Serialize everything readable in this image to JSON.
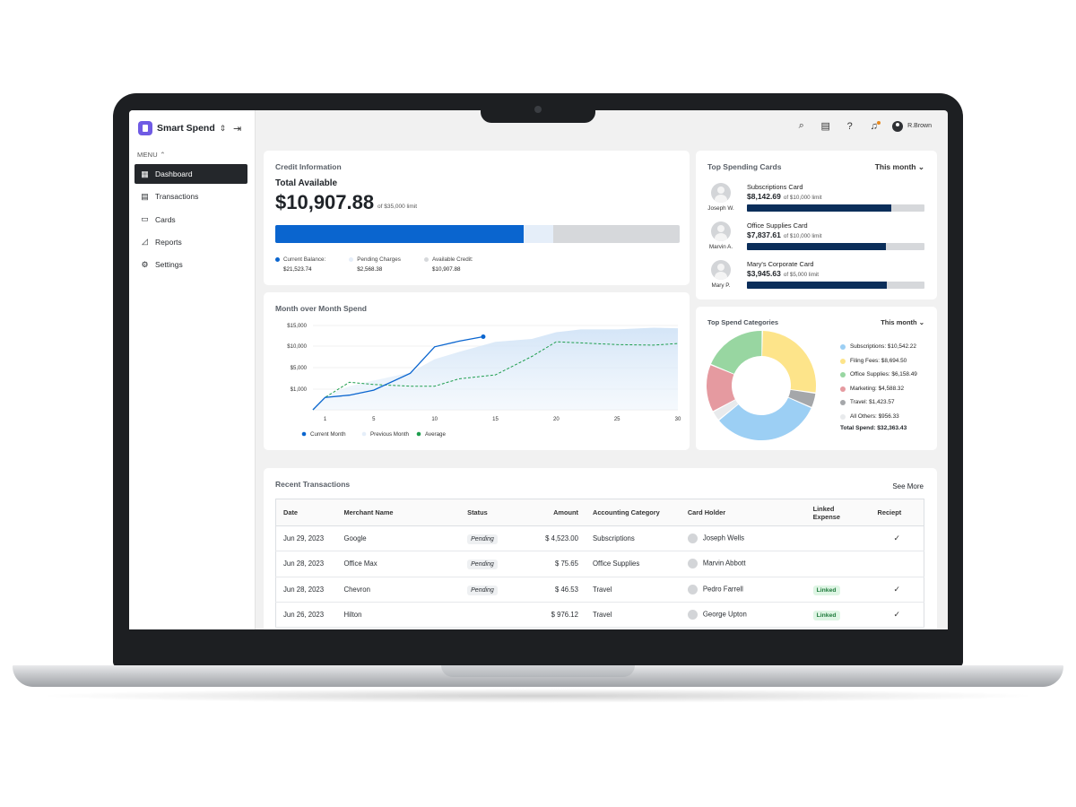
{
  "app": {
    "name": "Smart Spend",
    "menu_label": "MENU",
    "user_name": "R.Brown"
  },
  "sidebar": {
    "items": [
      {
        "label": "Dashboard",
        "icon": "dashboard-icon",
        "active": true
      },
      {
        "label": "Transactions",
        "icon": "document-icon",
        "active": false
      },
      {
        "label": "Cards",
        "icon": "card-icon",
        "active": false
      },
      {
        "label": "Reports",
        "icon": "chart-icon",
        "active": false
      },
      {
        "label": "Settings",
        "icon": "gear-icon",
        "active": false
      }
    ]
  },
  "credit": {
    "title": "Credit Information",
    "total_label": "Total Available",
    "total_amount": "$10,907.88",
    "limit_text": "of $35,000 limit",
    "bar": {
      "balance_fraction": 0.615,
      "pending_fraction": 0.073,
      "available_fraction": 0.312
    },
    "legend": [
      {
        "label": "Current Balance:",
        "value": "$21,523.74",
        "color": "#0a65cf"
      },
      {
        "label": "Pending Charges",
        "value": "$2,568.38",
        "color": "#e5eef9"
      },
      {
        "label": "Available Credit:",
        "value": "$10,907.88",
        "color": "#d6d8db"
      }
    ]
  },
  "mom": {
    "title": "Month over Month Spend"
  },
  "chart_data": {
    "type": "line",
    "title": "Month over Month Spend",
    "xlabel": "",
    "ylabel": "",
    "y_ticks": [
      "$15,000",
      "$10,000",
      "$5,000",
      "$1,000"
    ],
    "x_ticks": [
      "1",
      "5",
      "10",
      "15",
      "20",
      "25",
      "30"
    ],
    "xlim": [
      0,
      30
    ],
    "ylim": [
      0,
      15000
    ],
    "legend_position": "bottom",
    "series": [
      {
        "name": "Current Month",
        "color": "#0a65cf",
        "style": "solid",
        "x": [
          0,
          1,
          3,
          5,
          8,
          10,
          12,
          14
        ],
        "y": [
          0,
          2200,
          2600,
          3500,
          6500,
          11200,
          12200,
          13000
        ]
      },
      {
        "name": "Previous Month",
        "color": "#d9e8f7",
        "style": "area",
        "x": [
          0,
          1,
          3,
          5,
          8,
          10,
          12,
          15,
          18,
          20,
          22,
          25,
          28,
          30
        ],
        "y": [
          0,
          2500,
          4200,
          5200,
          6600,
          9000,
          10300,
          12100,
          12600,
          13800,
          14300,
          14300,
          14600,
          14500
        ]
      },
      {
        "name": "Average",
        "color": "#1e9e4e",
        "style": "dashed",
        "x": [
          0,
          1,
          3,
          5,
          8,
          10,
          12,
          15,
          18,
          20,
          22,
          25,
          28,
          30
        ],
        "y": [
          0,
          2200,
          4900,
          4500,
          4200,
          4200,
          5500,
          6200,
          9500,
          12100,
          11900,
          11600,
          11500,
          11800
        ]
      }
    ]
  },
  "top_cards": {
    "title": "Top Spending Cards",
    "period": "This month",
    "items": [
      {
        "holder": "Joseph W.",
        "card": "Subscriptions Card",
        "amount": "$8,142.69",
        "limit": "of $10,000 limit",
        "fraction": 0.814
      },
      {
        "holder": "Marvin A.",
        "card": "Office Supplies Card",
        "amount": "$7,837.61",
        "limit": "of $10,000 limit",
        "fraction": 0.784
      },
      {
        "holder": "Mary P.",
        "card": "Mary's Corporate Card",
        "amount": "$3,945.63",
        "limit": "of $5,000 limit",
        "fraction": 0.789
      }
    ]
  },
  "categories": {
    "title": "Top Spend  Categories",
    "period": "This month",
    "items": [
      {
        "label": "Subscriptions: $10,542.22",
        "value": 10542.22,
        "color": "#9ccff4"
      },
      {
        "label": "Filing Fees: $8,694.50",
        "value": 8694.5,
        "color": "#fde48a"
      },
      {
        "label": "Office Supplies: $6,158.49",
        "value": 6158.49,
        "color": "#98d6a1"
      },
      {
        "label": "Marketing: $4,588.32",
        "value": 4588.32,
        "color": "#e59aa0"
      },
      {
        "label": "Travel: $1,423.57",
        "value": 1423.57,
        "color": "#a5a7aa"
      },
      {
        "label": "All Others: $956.33",
        "value": 956.33,
        "color": "#e8eaec"
      }
    ],
    "total": "Total Spend: $32,363.43"
  },
  "transactions": {
    "title": "Recent Transactions",
    "see_more": "See More",
    "columns": [
      "Date",
      "Merchant Name",
      "Status",
      "Amount",
      "Accounting Category",
      "Card Holder",
      "Linked Expense",
      "Reciept"
    ],
    "rows": [
      {
        "date": "Jun 29, 2023",
        "merchant": "Google",
        "status": "Pending",
        "amount": "$ 4,523.00",
        "category": "Subscriptions",
        "holder": "Joseph Wells",
        "linked": "",
        "receipt": "✓"
      },
      {
        "date": "Jun 28, 2023",
        "merchant": "Office Max",
        "status": "Pending",
        "amount": "$ 75.65",
        "category": "Office Supplies",
        "holder": "Marvin Abbott",
        "linked": "",
        "receipt": ""
      },
      {
        "date": "Jun 28, 2023",
        "merchant": "Chevron",
        "status": "Pending",
        "amount": "$ 46.53",
        "category": "Travel",
        "holder": "Pedro Farrell",
        "linked": "Linked",
        "receipt": "✓"
      },
      {
        "date": "Jun 26, 2023",
        "merchant": "Hilton",
        "status": "",
        "amount": "$ 976.12",
        "category": "Travel",
        "holder": "George Upton",
        "linked": "Linked",
        "receipt": "✓"
      }
    ]
  }
}
